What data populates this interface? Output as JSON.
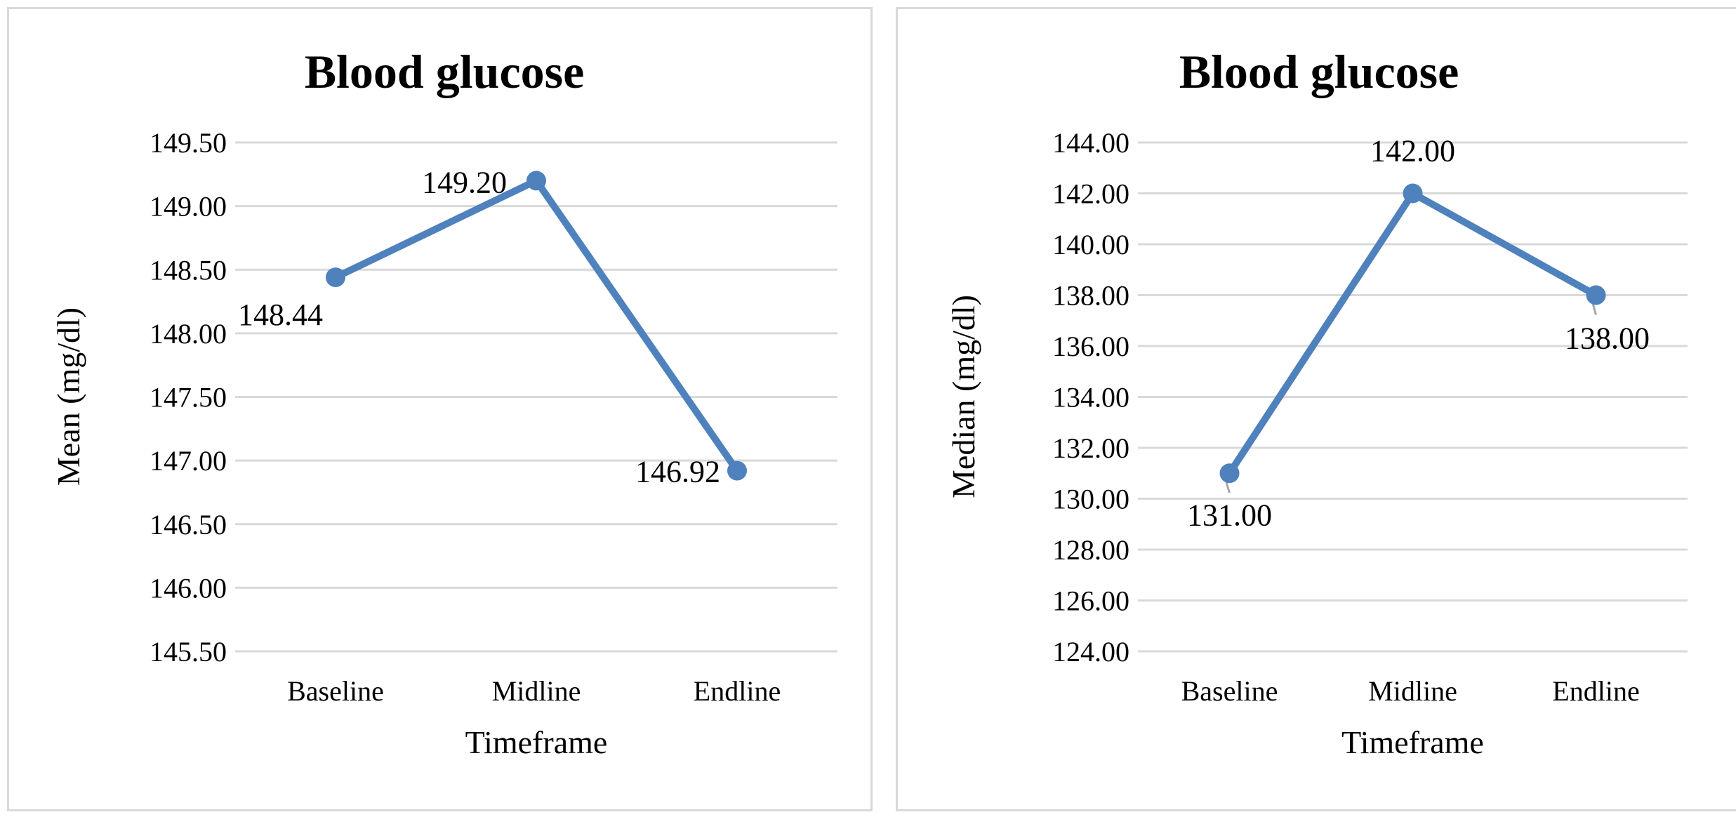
{
  "chart_data": [
    {
      "type": "line",
      "title": "Blood glucose",
      "xlabel": "Timeframe",
      "ylabel": "Mean (mg/dl)",
      "categories": [
        "Baseline",
        "Midline",
        "Endline"
      ],
      "series": [
        {
          "values": [
            148.44,
            149.2,
            146.92
          ]
        }
      ],
      "data_labels": [
        "148.44",
        "149.20",
        "146.92"
      ],
      "yticks": [
        "145.50",
        "146.00",
        "146.50",
        "147.00",
        "147.50",
        "148.00",
        "148.50",
        "149.00",
        "149.50"
      ],
      "ylim": [
        145.5,
        149.5
      ],
      "grid": true,
      "legend": "none",
      "line_color": "#4f81bd"
    },
    {
      "type": "line",
      "title": "Blood glucose",
      "xlabel": "Timeframe",
      "ylabel": "Median (mg/dl)",
      "categories": [
        "Baseline",
        "Midline",
        "Endline"
      ],
      "series": [
        {
          "values": [
            131.0,
            142.0,
            138.0
          ]
        }
      ],
      "data_labels": [
        "131.00",
        "142.00",
        "138.00"
      ],
      "yticks": [
        "124.00",
        "126.00",
        "128.00",
        "130.00",
        "132.00",
        "134.00",
        "136.00",
        "138.00",
        "140.00",
        "142.00",
        "144.00"
      ],
      "ylim": [
        124,
        144
      ],
      "grid": true,
      "legend": "none",
      "line_color": "#4f81bd"
    }
  ]
}
